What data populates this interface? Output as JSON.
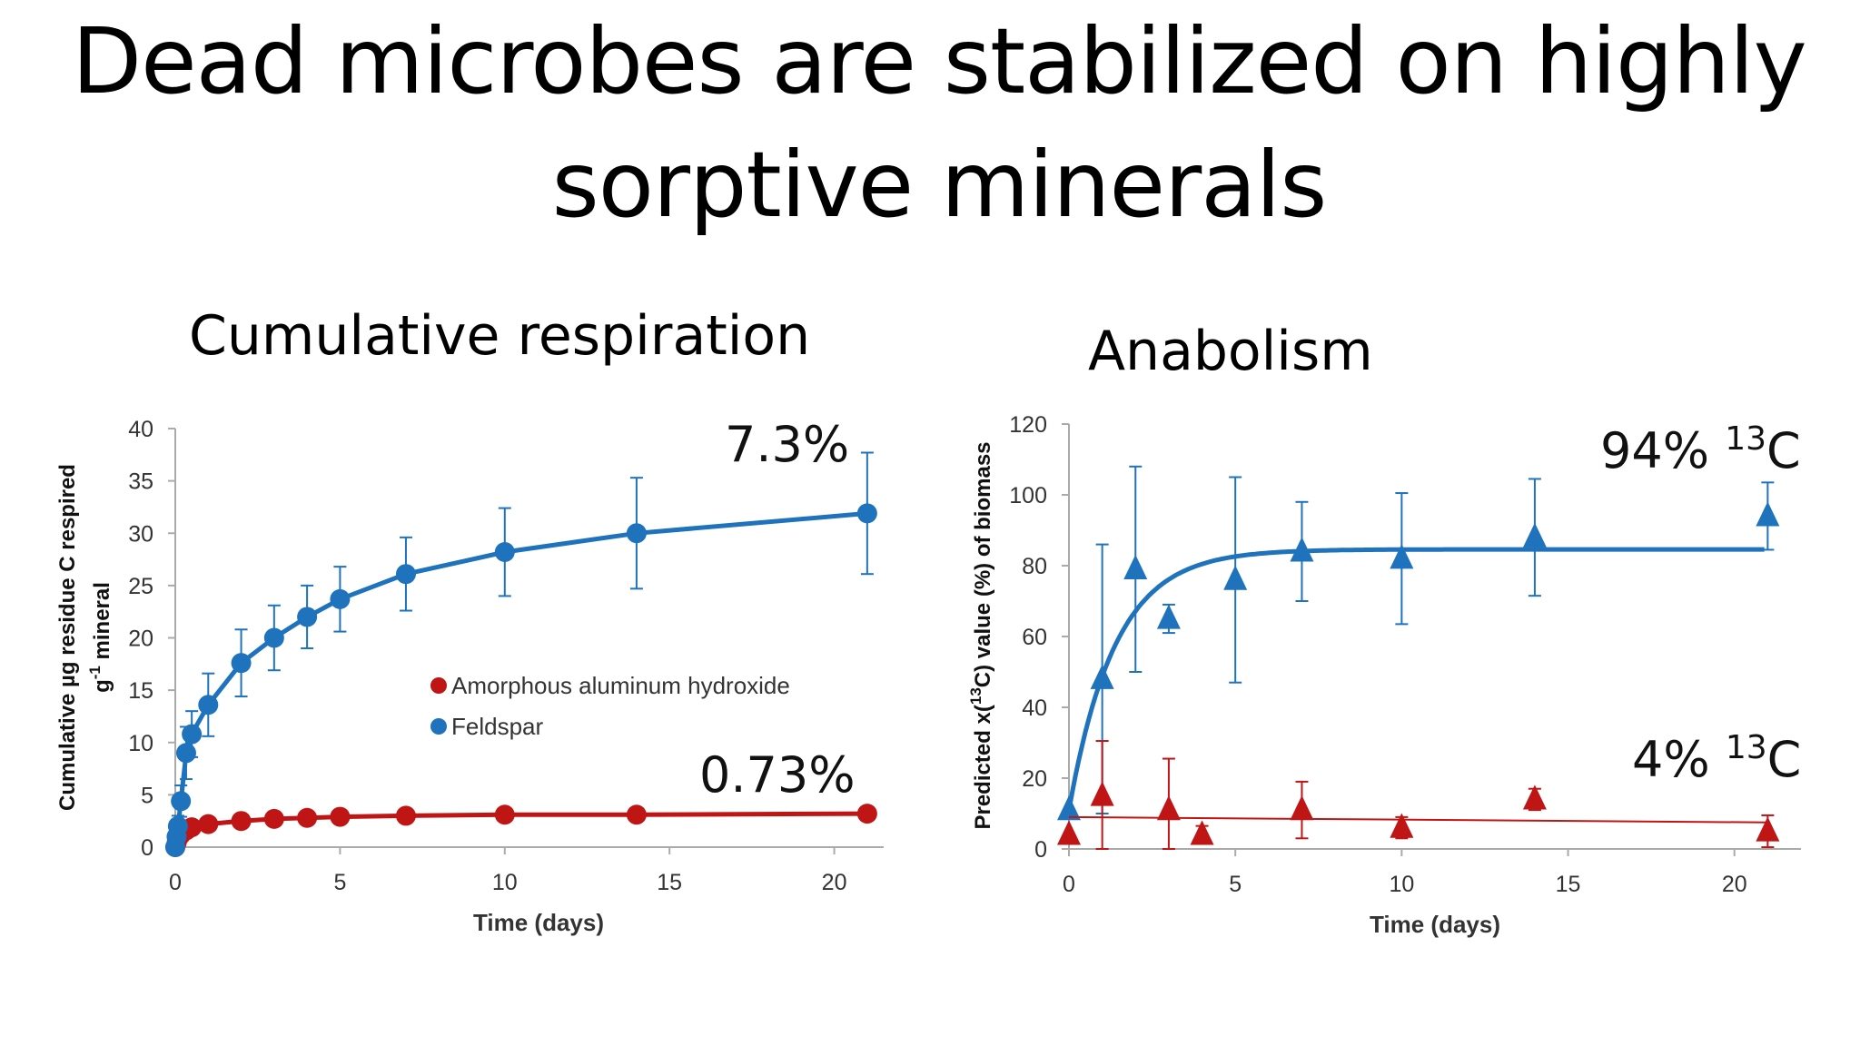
{
  "slide": {
    "title_line1": "Dead microbes are stabilized on highly",
    "title_line2": "sorptive minerals"
  },
  "panels": {
    "left_title": "Cumulative respiration",
    "right_title": "Anabolism"
  },
  "colors": {
    "blue": "#1f72bc",
    "red": "#c01515"
  },
  "chart_data": [
    {
      "type": "scatter",
      "title": "Cumulative respiration",
      "xlabel": "Time (days)",
      "ylabel_line1": "Cumulative µg residue C respired",
      "ylabel_line2_sup": "-1",
      "ylabel_line2_pre": "g",
      "ylabel_line2_post": " mineral",
      "xlim": [
        0,
        21.5
      ],
      "ylim": [
        0,
        40
      ],
      "xticks": [
        0,
        5,
        10,
        15,
        20
      ],
      "yticks": [
        0,
        5,
        10,
        15,
        20,
        25,
        30,
        35,
        40
      ],
      "legend_position": "center",
      "series": [
        {
          "name": "Amorphous aluminum hydroxide",
          "color": "#c01515",
          "marker": "circle",
          "x": [
            0,
            0.04,
            0.08,
            0.17,
            0.33,
            0.5,
            1,
            2,
            3,
            4,
            5,
            7,
            10,
            14,
            21
          ],
          "y": [
            0,
            0.4,
            0.8,
            1.2,
            1.6,
            1.9,
            2.2,
            2.5,
            2.7,
            2.8,
            2.9,
            3.0,
            3.1,
            3.1,
            3.2
          ],
          "fit": true
        },
        {
          "name": "Feldspar",
          "color": "#1f72bc",
          "marker": "circle",
          "x": [
            0,
            0.04,
            0.08,
            0.17,
            0.33,
            0.5,
            1,
            2,
            3,
            4,
            5,
            7,
            10,
            14,
            21
          ],
          "y": [
            0,
            1.0,
            2.0,
            4.4,
            9.0,
            10.8,
            13.6,
            17.6,
            20.0,
            22.0,
            23.7,
            26.1,
            28.2,
            30.0,
            31.9
          ],
          "err": [
            0,
            0.5,
            1.0,
            1.5,
            2.5,
            2.2,
            3.0,
            3.2,
            3.1,
            3.0,
            3.1,
            3.5,
            4.2,
            5.3,
            5.8
          ],
          "fit": true
        }
      ],
      "annotations": [
        {
          "text": "7.3%",
          "series": "Feldspar"
        },
        {
          "text": "0.73%",
          "series": "Amorphous aluminum hydroxide"
        }
      ]
    },
    {
      "type": "scatter",
      "title": "Anabolism",
      "xlabel": "Time (days)",
      "ylabel_pre": "Predicted x(",
      "ylabel_sup": "13",
      "ylabel_post": "C) value (%) of biomass",
      "xlim": [
        0,
        22
      ],
      "ylim": [
        0,
        120
      ],
      "xticks": [
        0,
        5,
        10,
        15,
        20
      ],
      "yticks": [
        0,
        20,
        40,
        60,
        80,
        100,
        120
      ],
      "series": [
        {
          "color": "#1f72bc",
          "marker": "triangle",
          "x": [
            0,
            1,
            2,
            3,
            5,
            7,
            10,
            14,
            21
          ],
          "y": [
            11,
            48,
            79,
            65,
            76,
            84,
            82,
            88,
            94
          ],
          "err": [
            0,
            38,
            29,
            4,
            29,
            14,
            18.5,
            16.5,
            9.5
          ],
          "fit": "saturating"
        },
        {
          "color": "#c01515",
          "marker": "triangle",
          "x": [
            0,
            1,
            3,
            4,
            7,
            10,
            14,
            21
          ],
          "y": [
            4,
            15,
            11,
            4,
            11,
            6,
            14,
            5
          ],
          "err": [
            0,
            15.5,
            14.5,
            2.5,
            8,
            3,
            3,
            4.5
          ],
          "fit": "linear"
        }
      ],
      "annotations": [
        {
          "pre": "94% ",
          "sup": "13",
          "post": "C"
        },
        {
          "pre": "4% ",
          "sup": "13",
          "post": "C"
        }
      ]
    }
  ]
}
